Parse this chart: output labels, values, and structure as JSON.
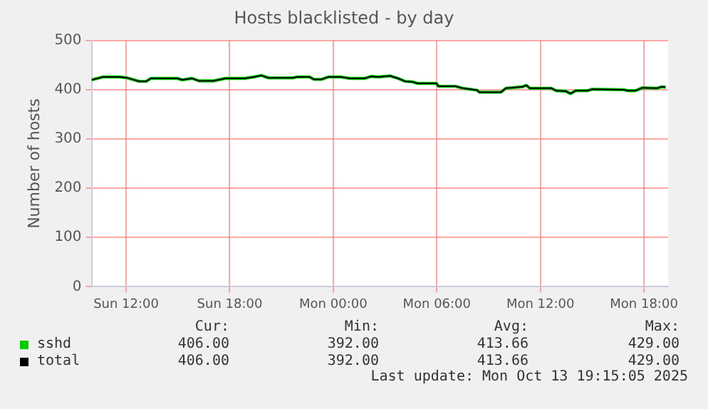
{
  "chart_data": {
    "type": "line",
    "title": "Hosts blacklisted - by day",
    "ylabel": "Number of hosts",
    "xlim": [
      "2025-10-12T10:00",
      "2025-10-13T19:24"
    ],
    "xticks": [
      {
        "value": "2025-10-12T12:00",
        "label": "Sun 12:00"
      },
      {
        "value": "2025-10-12T18:00",
        "label": "Sun 18:00"
      },
      {
        "value": "2025-10-13T00:00",
        "label": "Mon 00:00"
      },
      {
        "value": "2025-10-13T06:00",
        "label": "Mon 06:00"
      },
      {
        "value": "2025-10-13T12:00",
        "label": "Mon 12:00"
      },
      {
        "value": "2025-10-13T18:00",
        "label": "Mon 18:00"
      }
    ],
    "ylim": [
      0,
      500
    ],
    "yticks": [
      0,
      100,
      200,
      300,
      400,
      500
    ],
    "x": [
      "2025-10-12T10:00",
      "2025-10-12T10:40",
      "2025-10-12T11:38",
      "2025-10-12T12:04",
      "2025-10-12T12:28",
      "2025-10-12T12:45",
      "2025-10-12T13:10",
      "2025-10-12T13:26",
      "2025-10-12T14:58",
      "2025-10-12T15:15",
      "2025-10-12T15:49",
      "2025-10-12T16:13",
      "2025-10-12T17:04",
      "2025-10-12T17:45",
      "2025-10-12T18:52",
      "2025-10-12T19:25",
      "2025-10-12T19:50",
      "2025-10-12T20:15",
      "2025-10-12T21:38",
      "2025-10-12T21:55",
      "2025-10-12T22:37",
      "2025-10-12T22:53",
      "2025-10-12T23:19",
      "2025-10-12T23:43",
      "2025-10-13T00:25",
      "2025-10-13T00:58",
      "2025-10-13T01:48",
      "2025-10-13T02:12",
      "2025-10-13T02:36",
      "2025-10-13T03:18",
      "2025-10-13T03:45",
      "2025-10-13T04:10",
      "2025-10-13T04:35",
      "2025-10-13T04:52",
      "2025-10-13T05:58",
      "2025-10-13T06:06",
      "2025-10-13T07:05",
      "2025-10-13T07:30",
      "2025-10-13T08:20",
      "2025-10-13T08:28",
      "2025-10-13T09:43",
      "2025-10-13T10:00",
      "2025-10-13T10:58",
      "2025-10-13T11:11",
      "2025-10-13T11:23",
      "2025-10-13T12:38",
      "2025-10-13T12:55",
      "2025-10-13T13:28",
      "2025-10-13T13:45",
      "2025-10-13T14:02",
      "2025-10-13T14:43",
      "2025-10-13T15:00",
      "2025-10-13T16:49",
      "2025-10-13T17:05",
      "2025-10-13T17:30",
      "2025-10-13T17:55",
      "2025-10-13T18:45",
      "2025-10-13T19:02",
      "2025-10-13T19:15"
    ],
    "series": [
      {
        "name": "sshd",
        "color": "#00cc00",
        "values": [
          420,
          426,
          426,
          424,
          420,
          417,
          417,
          423,
          423,
          420,
          423,
          418,
          418,
          423,
          423,
          426,
          429,
          424,
          424,
          426,
          426,
          421,
          421,
          426,
          426,
          423,
          423,
          427,
          426,
          428,
          423,
          417,
          416,
          413,
          413,
          407,
          407,
          403,
          399,
          395,
          395,
          403,
          406,
          409,
          403,
          403,
          398,
          397,
          392,
          398,
          398,
          401,
          400,
          398,
          398,
          404,
          403,
          406,
          405
        ]
      },
      {
        "name": "total",
        "color": "#000000",
        "values": [
          420,
          426,
          426,
          424,
          420,
          417,
          417,
          423,
          423,
          420,
          423,
          418,
          418,
          423,
          423,
          426,
          429,
          424,
          424,
          426,
          426,
          421,
          421,
          426,
          426,
          423,
          423,
          427,
          426,
          428,
          423,
          417,
          416,
          413,
          413,
          407,
          407,
          403,
          399,
          395,
          395,
          403,
          406,
          409,
          403,
          403,
          398,
          397,
          392,
          398,
          398,
          401,
          400,
          398,
          398,
          404,
          403,
          406,
          405
        ]
      }
    ],
    "grid": true,
    "legend": "bottom left",
    "annotations": [
      "Cur:",
      "Min:",
      "Avg:",
      "Max:",
      "406.00",
      "392.00",
      "413.66",
      "429.00",
      "406.00",
      "392.00",
      "413.66",
      "429.00",
      "Last update: Mon Oct 13 19:15:05 2025"
    ]
  }
}
